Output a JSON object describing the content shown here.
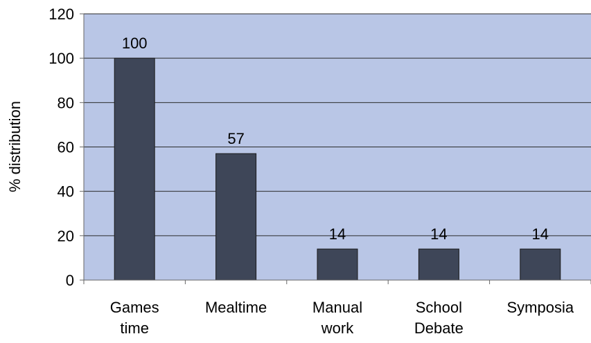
{
  "chart_data": {
    "type": "bar",
    "categories": [
      [
        "Games",
        "time"
      ],
      [
        "Mealtime"
      ],
      [
        "Manual",
        "work"
      ],
      [
        "School",
        "Debate"
      ],
      [
        "Symposia"
      ]
    ],
    "values": [
      100,
      57,
      14,
      14,
      14
    ],
    "data_labels": [
      "100",
      "57",
      "14",
      "14",
      "14"
    ],
    "title": "",
    "xlabel": "",
    "ylabel": "% distribution",
    "ylim": [
      0,
      120
    ],
    "yticks": [
      "0",
      "20",
      "40",
      "60",
      "80",
      "100",
      "120"
    ],
    "grid": true,
    "legend": "none",
    "colors": {
      "plot_background": "#b9c6e6",
      "bar_fill": "#3e4658",
      "bar_stroke": "#1a1a1a",
      "gridline": "#2a2a2a",
      "axis": "#666666"
    }
  }
}
